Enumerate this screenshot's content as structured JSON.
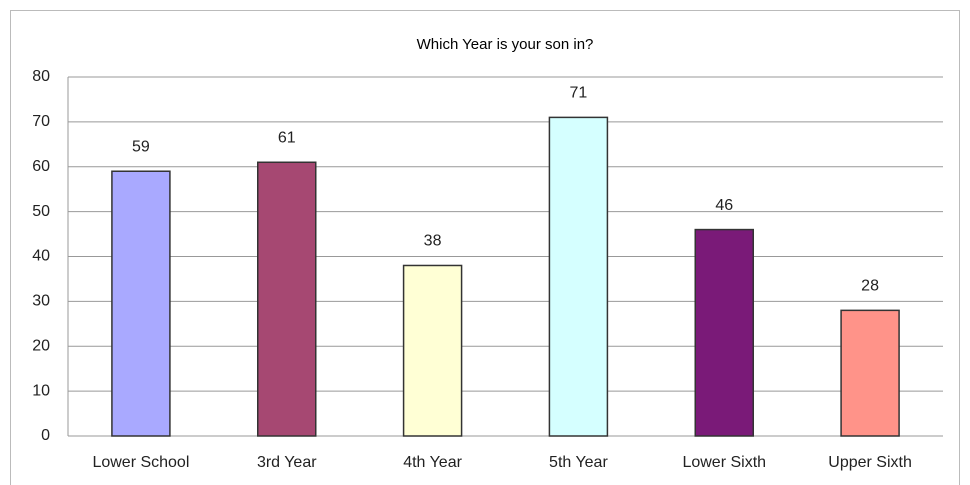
{
  "chart_data": {
    "type": "bar",
    "title": "Which Year is your son in?",
    "categories": [
      "Lower School",
      "3rd Year",
      "4th Year",
      "5th Year",
      "Lower Sixth",
      "Upper Sixth"
    ],
    "values": [
      59,
      61,
      38,
      71,
      46,
      28
    ],
    "colors": [
      "#a9a9ff",
      "#a64872",
      "#ffffd5",
      "#d5ffff",
      "#7a1a78",
      "#ff9389"
    ],
    "ylim": [
      0,
      80
    ],
    "yticks": [
      0,
      10,
      20,
      30,
      40,
      50,
      60,
      70,
      80
    ],
    "grid": true
  }
}
